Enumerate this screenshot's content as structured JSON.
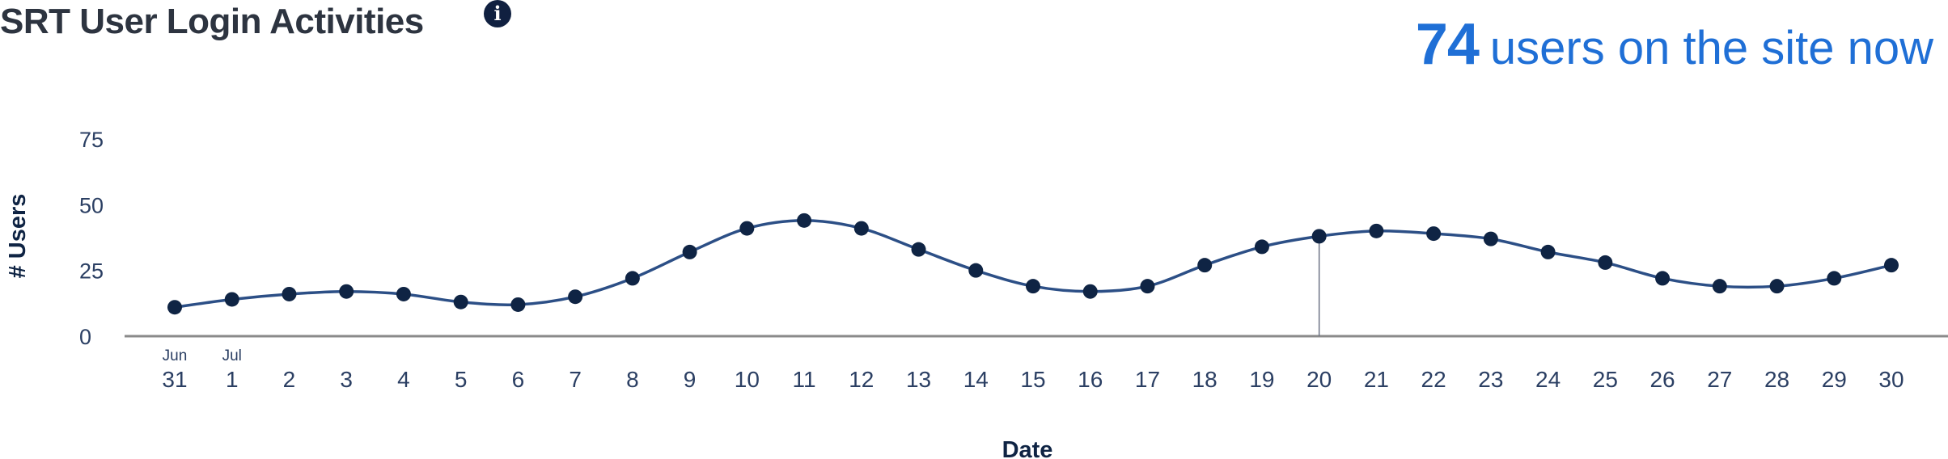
{
  "header": {
    "title": "SRT User Login Activities",
    "info_icon": "info-icon",
    "live_count": "74",
    "live_text": "users on the site now"
  },
  "colors": {
    "title": "#2d3440",
    "accent": "#1f6fd6",
    "line": "#2c4f86",
    "points": "#0f2444",
    "axis": "#8a8a8a"
  },
  "chart_data": {
    "type": "line",
    "title": "",
    "xlabel": "Date",
    "ylabel": "# Users",
    "ylim": [
      0,
      75
    ],
    "yticks": [
      0,
      25,
      50,
      75
    ],
    "x": [
      "31",
      "1",
      "2",
      "3",
      "4",
      "5",
      "6",
      "7",
      "8",
      "9",
      "10",
      "11",
      "12",
      "13",
      "14",
      "15",
      "16",
      "17",
      "18",
      "19",
      "20",
      "21",
      "22",
      "23",
      "24",
      "25",
      "26",
      "27",
      "28",
      "29",
      "30"
    ],
    "month_labels": [
      {
        "label": "Jun",
        "at": "31"
      },
      {
        "label": "Jul",
        "at": "1"
      }
    ],
    "series": [
      {
        "values": [
          11,
          14,
          16,
          17,
          16,
          13,
          12,
          15,
          22,
          32,
          41,
          44,
          41,
          33,
          25,
          19,
          17,
          19,
          27,
          34,
          38,
          40,
          39,
          37,
          32,
          28,
          22,
          19,
          19,
          22,
          27
        ]
      }
    ],
    "marker_at": "20",
    "grid": false,
    "legend": "none"
  }
}
